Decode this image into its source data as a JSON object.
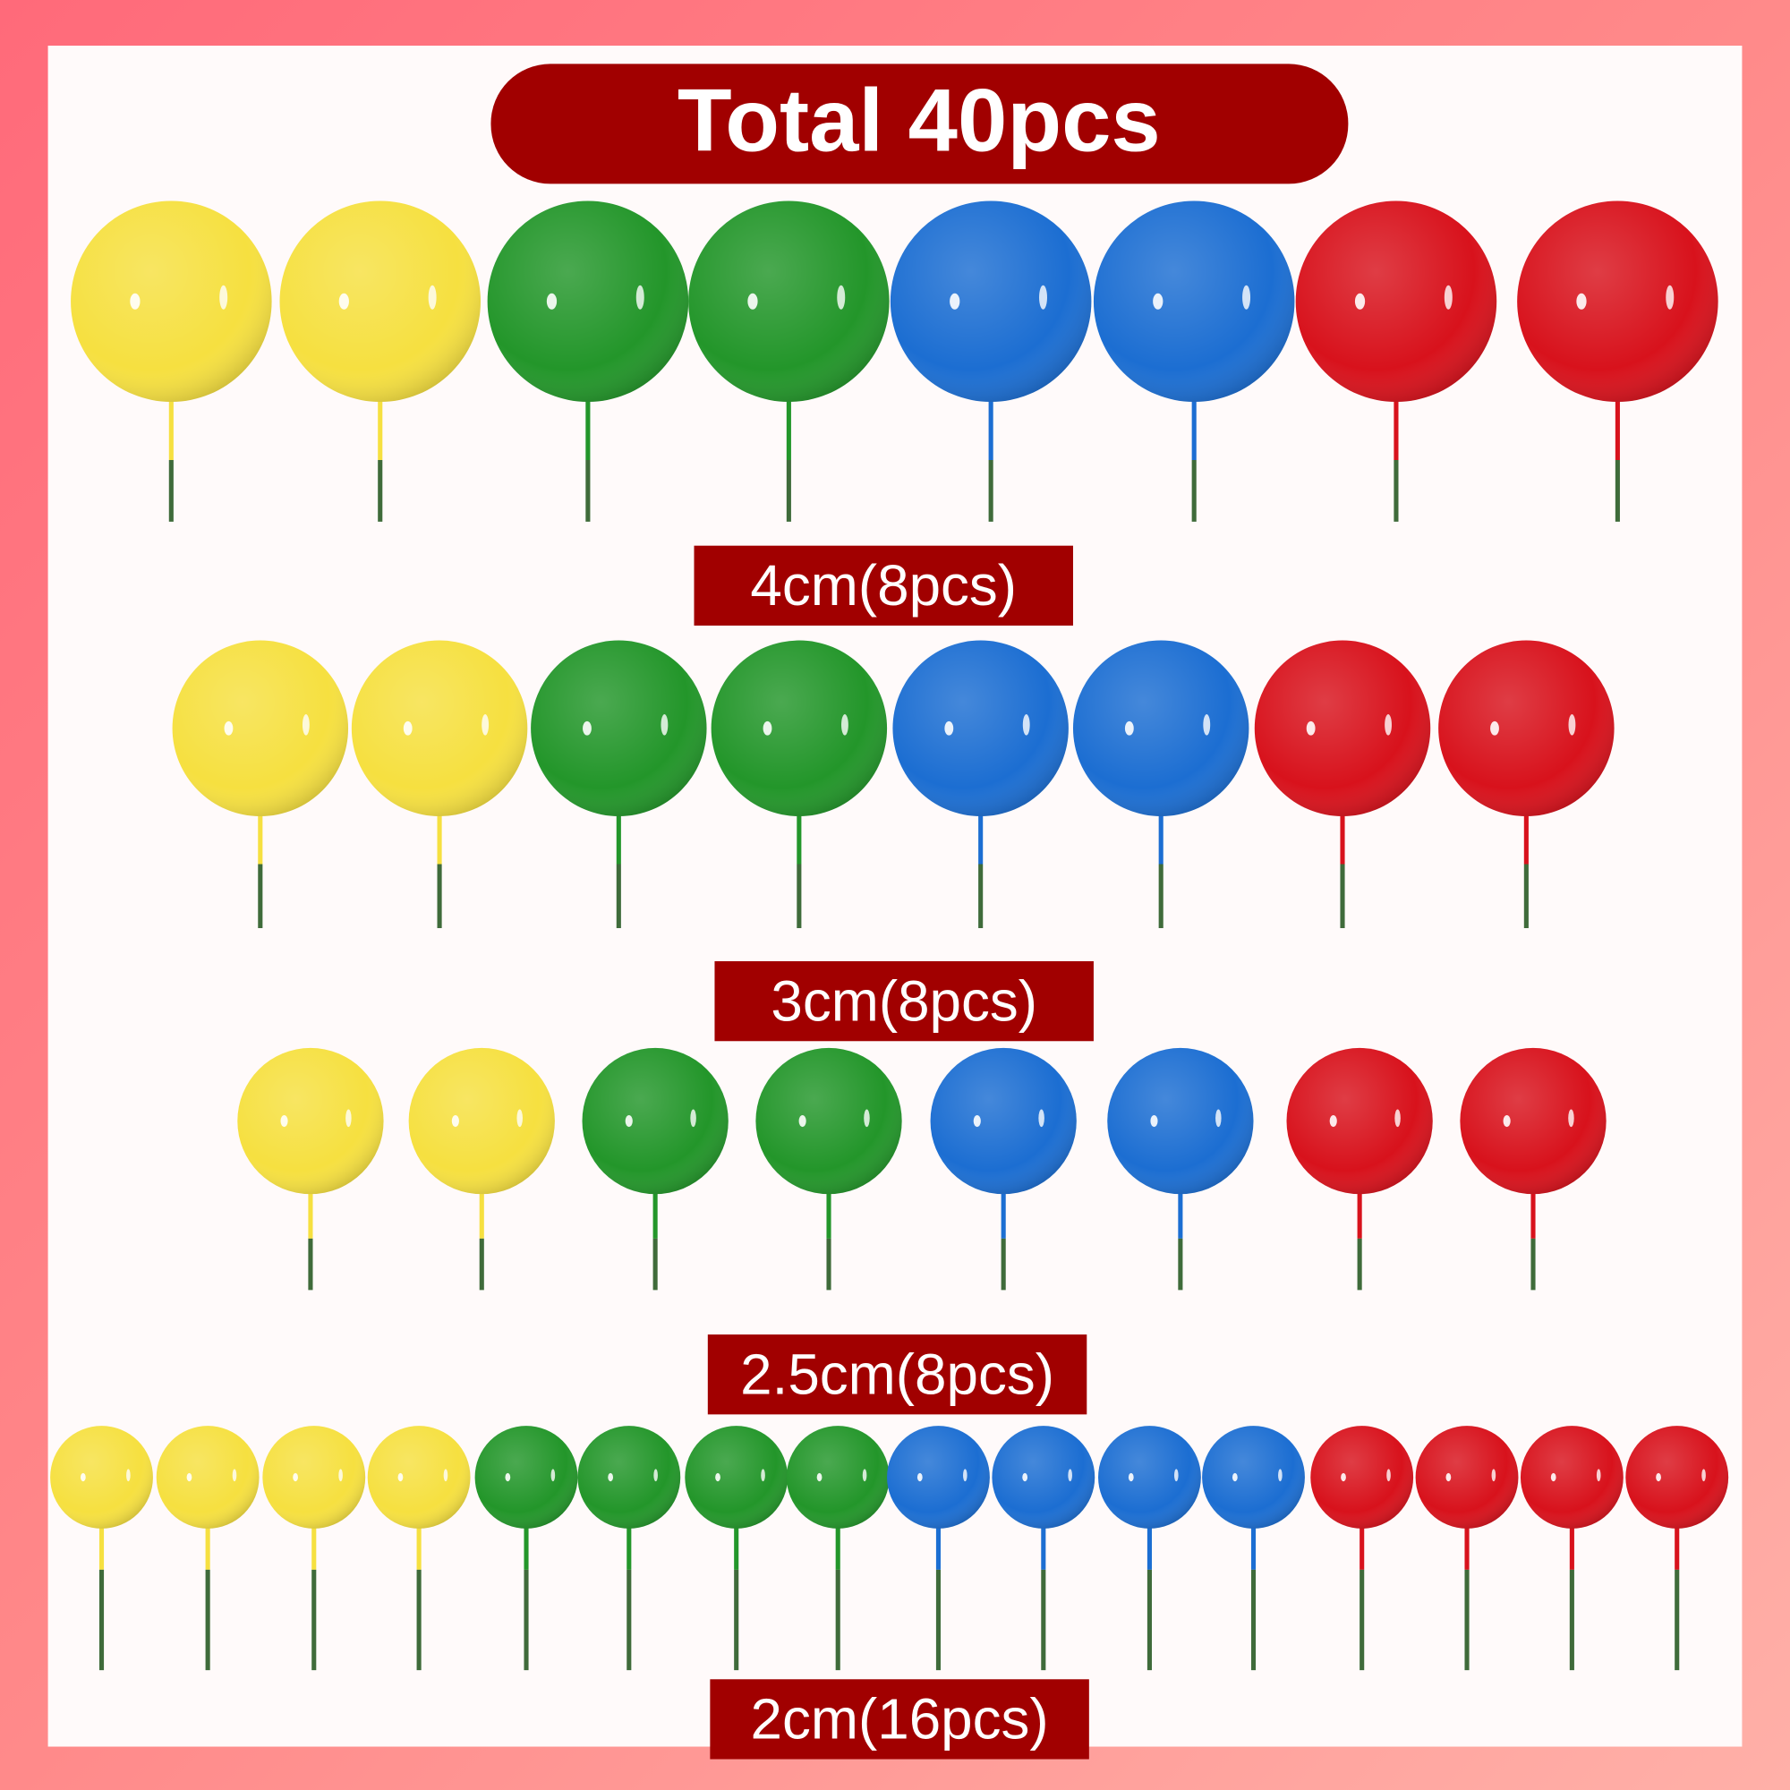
{
  "title": "Total 40pcs",
  "colors": {
    "yellow": "#f6e040",
    "green": "#23962a",
    "blue": "#1c6ed2",
    "red": "#d8121c",
    "stem": "#3f6b3a",
    "label_bg": "#a10000",
    "label_text": "#ffffff"
  },
  "rows": [
    {
      "label": "4cm(8pcs)",
      "balls": [
        "yellow",
        "yellow",
        "green",
        "green",
        "blue",
        "blue",
        "red",
        "red"
      ]
    },
    {
      "label": "3cm(8pcs)",
      "balls": [
        "yellow",
        "yellow",
        "green",
        "green",
        "blue",
        "blue",
        "red",
        "red"
      ]
    },
    {
      "label": "2.5cm(8pcs)",
      "balls": [
        "yellow",
        "yellow",
        "green",
        "green",
        "blue",
        "blue",
        "red",
        "red"
      ]
    },
    {
      "label": "2cm(16pcs)",
      "balls": [
        "yellow",
        "yellow",
        "yellow",
        "yellow",
        "green",
        "green",
        "green",
        "green",
        "blue",
        "blue",
        "blue",
        "blue",
        "red",
        "red",
        "red",
        "red"
      ]
    }
  ]
}
